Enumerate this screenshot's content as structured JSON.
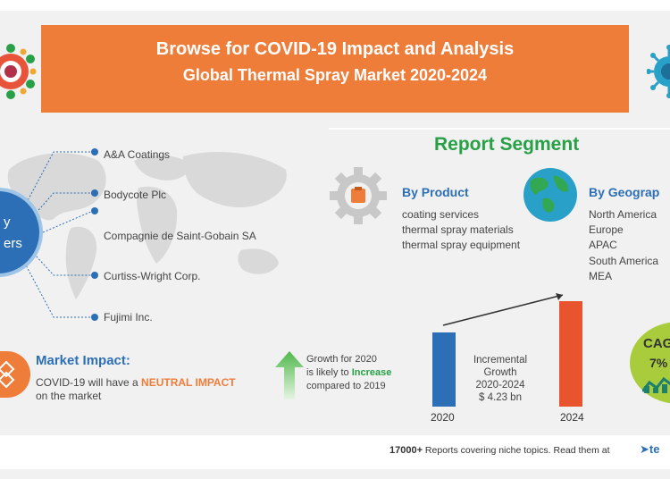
{
  "banner": {
    "line1": "Browse for COVID-19 Impact and Analysis",
    "line2": "Global Thermal Spray Market 2020-2024"
  },
  "colors": {
    "banner_orange": "#ef7d3a",
    "blue": "#2d6fb6",
    "green": "#27a046",
    "lime": "#a9cc3c",
    "background": "#f1f1f1"
  },
  "vendors": {
    "hub_line1": "y",
    "hub_line2": "ers",
    "companies": [
      "A&A Coatings",
      "Bodycote Plc",
      "Compagnie de Saint-Gobain SA",
      "Curtiss-Wright Corp.",
      "Fujimi Inc."
    ]
  },
  "segment": {
    "title": "Report Segment",
    "product": {
      "title": "By Product",
      "icon": "gear-icon",
      "items": [
        "coating services",
        "thermal spray materials",
        "thermal spray equipment"
      ]
    },
    "geography": {
      "title": "By Geograp",
      "icon": "globe-icon",
      "items": [
        "North America",
        "Europe",
        "APAC",
        "South America",
        "MEA"
      ]
    }
  },
  "market_impact": {
    "title": "Market Impact:",
    "line1_pre": "COVID-19 will have a ",
    "line1_highlight": "NEUTRAL IMPACT",
    "line2": "on the market"
  },
  "growth": {
    "line1": "Growth for 2020",
    "line2_pre": "is likely to ",
    "line2_highlight": "Increase",
    "line3": "compared to 2019"
  },
  "incremental": {
    "lines": [
      "Incremental",
      "Growth",
      "2020-2024",
      "$ 4.23 bn"
    ],
    "year_start": "2020",
    "year_end": "2024"
  },
  "cagr": {
    "label": "CAG",
    "value": "7%"
  },
  "footer": {
    "count": "17000+",
    "text": " Reports covering niche topics. Read them at",
    "brand": "te"
  }
}
